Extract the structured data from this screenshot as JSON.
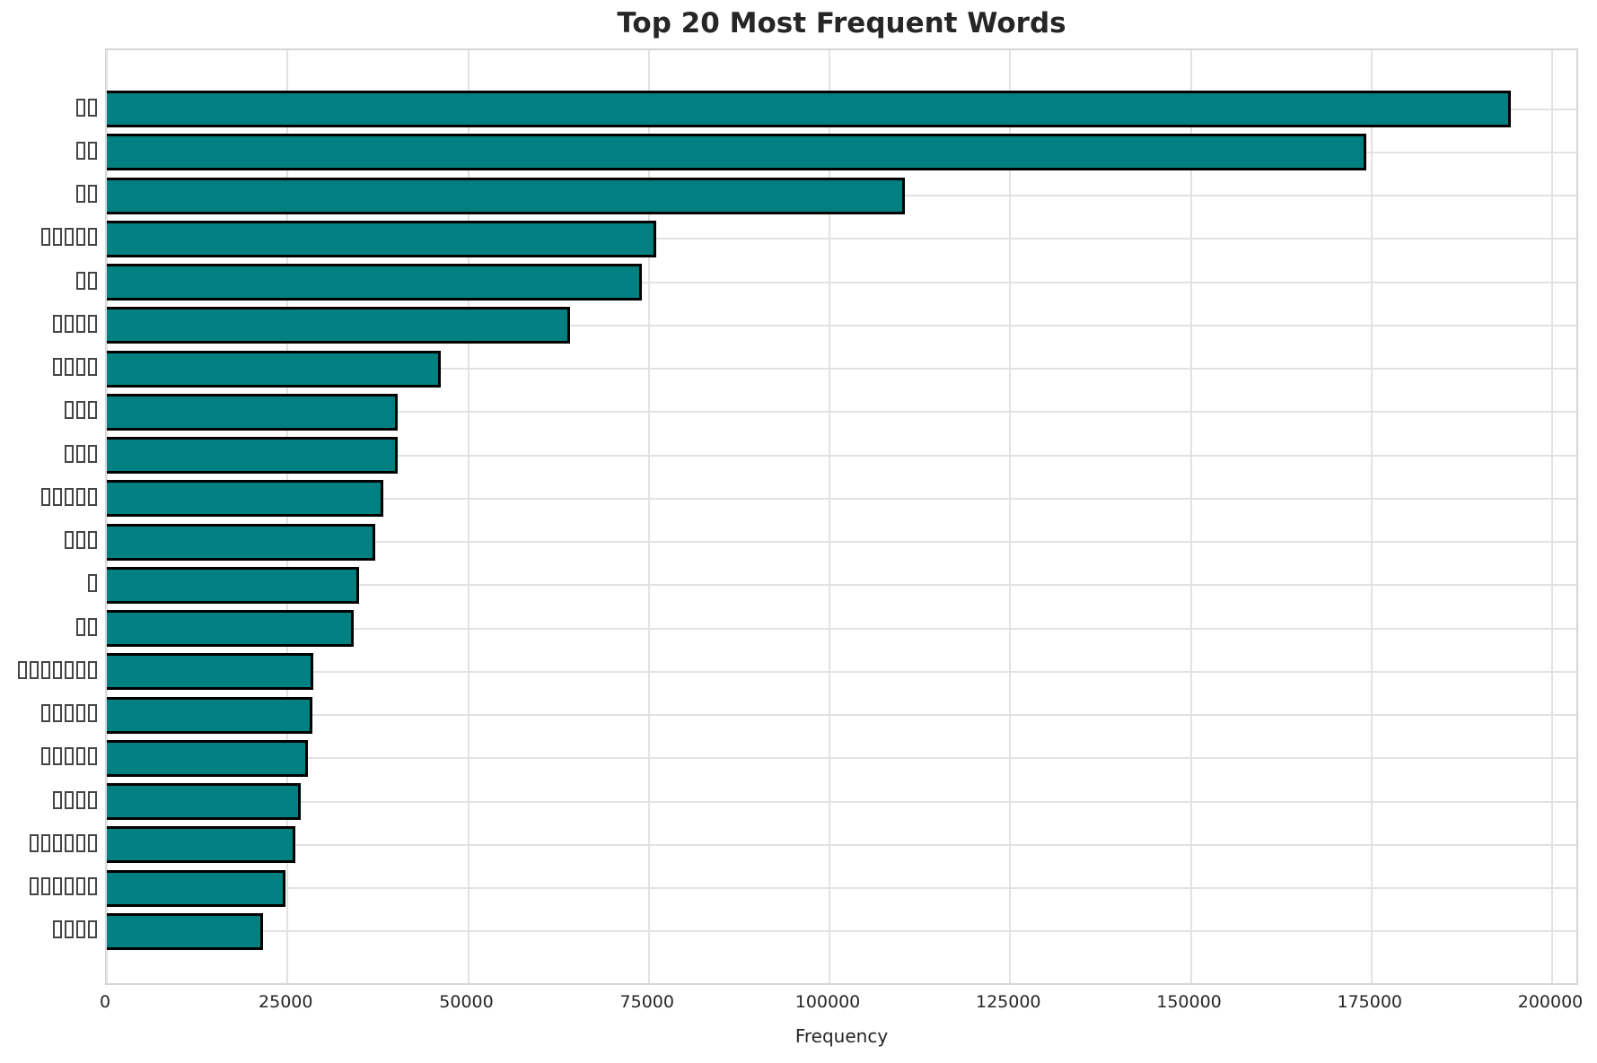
{
  "figure": {
    "title": "Top 20 Most Frequent Words",
    "xlabel": "Frequency"
  },
  "chart_data": {
    "type": "bar",
    "orientation": "horizontal",
    "title": "Top 20 Most Frequent Words",
    "xlabel": "Frequency",
    "ylabel": "",
    "xlim": [
      0,
      204000
    ],
    "x_ticks": [
      0,
      25000,
      50000,
      75000,
      100000,
      125000,
      150000,
      175000,
      200000
    ],
    "grid": true,
    "legend_position": "none",
    "bar_fill_color": "#008080",
    "bar_edge_color": "#000000",
    "categories": [
      "□□",
      "□□",
      "□□",
      "□□□□□",
      "□□",
      "□□□□",
      "□□□□",
      "□□□",
      "□□□",
      "□□□□□",
      "□□□",
      "□",
      "□□",
      "□□□□□□□",
      "□□□□□",
      "□□□□□",
      "□□□□",
      "□□□□□□",
      "□□□□□□",
      "□□□□"
    ],
    "values": [
      194300,
      174300,
      110400,
      76000,
      74000,
      64100,
      46200,
      40300,
      40300,
      38200,
      37100,
      34900,
      34200,
      28600,
      28400,
      27800,
      26800,
      26100,
      24700,
      21600
    ]
  }
}
